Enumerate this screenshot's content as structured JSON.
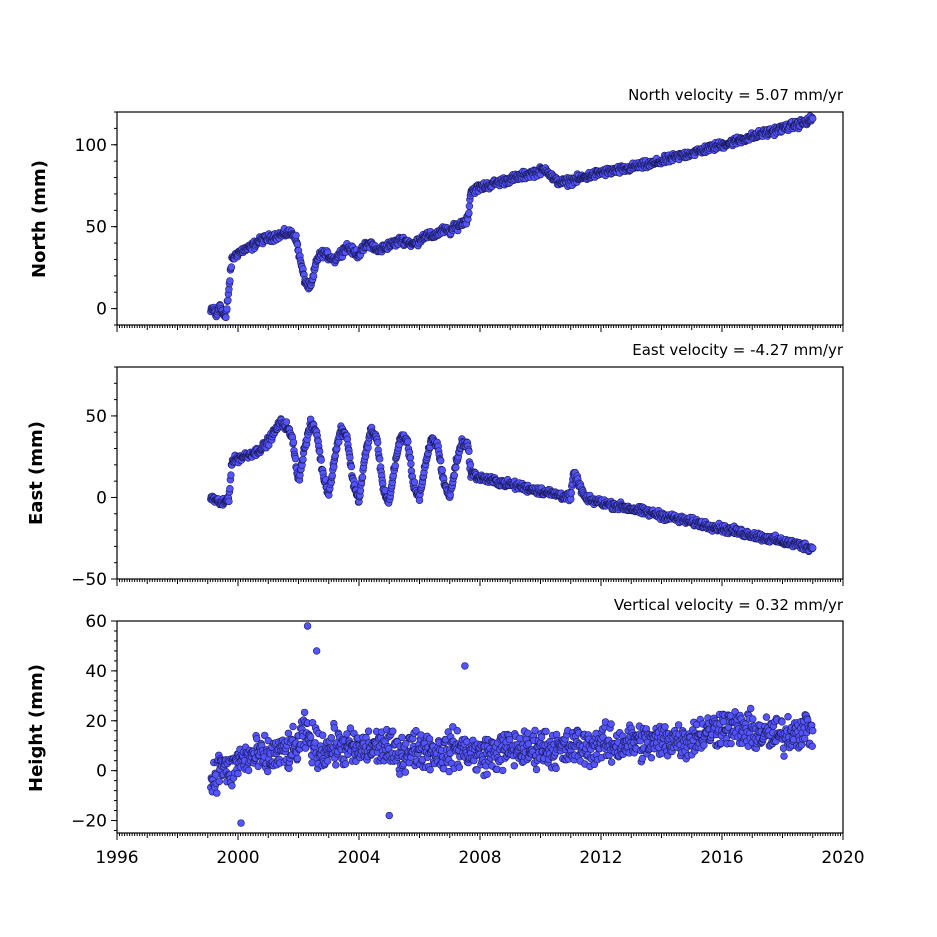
{
  "chart_data": [
    {
      "type": "scatter",
      "title": "North velocity = 5.07 mm/yr",
      "xlabel": "",
      "ylabel": "North (mm)",
      "xlim": [
        1996,
        2020
      ],
      "ylim": [
        -10,
        120
      ],
      "yticks": [
        0,
        50,
        100
      ],
      "grid": false,
      "series": [
        {
          "x": [
            1999.1,
            1999.2,
            1999.3,
            1999.4,
            1999.5,
            1999.6,
            1999.8,
            1999.9,
            2000.0,
            2000.2,
            2000.4,
            2000.6,
            2000.8,
            2001.0,
            2001.2,
            2001.4,
            2001.6,
            2001.8,
            2001.9,
            2002.0,
            2002.1,
            2002.2,
            2002.3,
            2002.4,
            2002.5,
            2002.6,
            2002.8,
            2003.0,
            2003.2,
            2003.4,
            2003.6,
            2003.8,
            2004.0,
            2004.2,
            2004.4,
            2004.6,
            2004.8,
            2005.0,
            2005.2,
            2005.4,
            2005.6,
            2005.8,
            2006.0,
            2006.2,
            2006.4,
            2006.6,
            2006.8,
            2007.0,
            2007.2,
            2007.4,
            2007.6,
            2007.7,
            2008.0,
            2008.4,
            2008.8,
            2009.2,
            2009.6,
            2010.0,
            2010.2,
            2010.4,
            2010.5,
            2010.8,
            2011.2,
            2011.6,
            2012.0,
            2012.4,
            2012.8,
            2013.2,
            2013.6,
            2014.0,
            2014.4,
            2014.8,
            2015.2,
            2015.6,
            2016.0,
            2016.4,
            2016.8,
            2017.2,
            2017.6,
            2018.0,
            2018.4,
            2018.8,
            2019.0
          ],
          "y": [
            -2,
            0,
            -5,
            3,
            -3,
            -6,
            30,
            32,
            34,
            36,
            37,
            40,
            42,
            43,
            44,
            45,
            46,
            46,
            44,
            35,
            26,
            18,
            14,
            13,
            20,
            30,
            34,
            32,
            30,
            34,
            38,
            35,
            33,
            38,
            40,
            35,
            37,
            39,
            40,
            42,
            41,
            39,
            42,
            45,
            44,
            46,
            48,
            47,
            50,
            52,
            55,
            72,
            74,
            76,
            78,
            80,
            82,
            84,
            85,
            80,
            78,
            77,
            79,
            81,
            83,
            84,
            85,
            87,
            88,
            90,
            92,
            94,
            96,
            98,
            100,
            102,
            104,
            106,
            108,
            110,
            112,
            114,
            116
          ]
        }
      ]
    },
    {
      "type": "scatter",
      "title": "East velocity = -4.27 mm/yr",
      "xlabel": "",
      "ylabel": "East (mm)",
      "xlim": [
        1996,
        2020
      ],
      "ylim": [
        -50,
        80
      ],
      "yticks": [
        -50,
        0,
        50
      ],
      "grid": false,
      "series": [
        {
          "x": [
            1999.1,
            1999.3,
            1999.5,
            1999.7,
            1999.8,
            2000.0,
            2000.3,
            2000.6,
            2000.9,
            2001.2,
            2001.4,
            2001.6,
            2001.8,
            2002.0,
            2002.2,
            2002.4,
            2002.6,
            2002.8,
            2003.0,
            2003.2,
            2003.4,
            2003.6,
            2003.8,
            2004.0,
            2004.2,
            2004.4,
            2004.6,
            2004.8,
            2005.0,
            2005.2,
            2005.4,
            2005.6,
            2005.8,
            2006.0,
            2006.2,
            2006.4,
            2006.6,
            2006.8,
            2007.0,
            2007.2,
            2007.4,
            2007.6,
            2007.7,
            2008.0,
            2008.5,
            2009.0,
            2009.5,
            2010.0,
            2010.5,
            2011.0,
            2011.1,
            2011.5,
            2012.0,
            2012.5,
            2013.0,
            2013.5,
            2014.0,
            2014.5,
            2015.0,
            2015.5,
            2016.0,
            2016.5,
            2017.0,
            2017.5,
            2018.0,
            2018.5,
            2019.0
          ],
          "y": [
            0,
            -2,
            -4,
            0,
            22,
            24,
            26,
            28,
            32,
            40,
            46,
            44,
            36,
            10,
            30,
            45,
            40,
            15,
            2,
            25,
            42,
            38,
            10,
            -2,
            25,
            42,
            35,
            5,
            -3,
            22,
            38,
            35,
            8,
            0,
            20,
            36,
            32,
            10,
            0,
            20,
            34,
            32,
            15,
            12,
            10,
            8,
            6,
            4,
            2,
            0,
            15,
            -1,
            -3,
            -5,
            -7,
            -9,
            -11,
            -13,
            -15,
            -17,
            -19,
            -21,
            -23,
            -25,
            -27,
            -29,
            -31
          ]
        }
      ]
    },
    {
      "type": "scatter",
      "title": "Vertical velocity = 0.32 mm/yr",
      "xlabel": "",
      "ylabel": "Height (mm)",
      "xlim": [
        1996,
        2020
      ],
      "ylim": [
        -25,
        60
      ],
      "yticks": [
        -20,
        0,
        20,
        40,
        60
      ],
      "xticks": [
        1996,
        2000,
        2004,
        2008,
        2012,
        2016,
        2020
      ],
      "xticklabels": [
        "1996",
        "2000",
        "2004",
        "2008",
        "2012",
        "2016",
        "2020"
      ],
      "grid": false,
      "series": [
        {
          "x": [
            1999.1,
            1999.3,
            1999.5,
            1999.7,
            2000.0,
            2000.3,
            2000.6,
            2001.0,
            2001.4,
            2001.8,
            2002.0,
            2002.2,
            2002.4,
            2002.6,
            2002.9,
            2003.2,
            2003.6,
            2004.0,
            2004.4,
            2004.8,
            2005.2,
            2005.6,
            2006.0,
            2006.4,
            2006.8,
            2007.2,
            2007.6,
            2008.0,
            2008.4,
            2008.8,
            2009.2,
            2009.6,
            2010.0,
            2010.4,
            2010.8,
            2011.2,
            2011.6,
            2012.0,
            2012.4,
            2012.8,
            2013.2,
            2013.6,
            2014.0,
            2014.4,
            2014.8,
            2015.2,
            2015.6,
            2016.0,
            2016.4,
            2016.8,
            2017.2,
            2017.6,
            2018.0,
            2018.4,
            2018.8,
            2019.0
          ],
          "y": [
            -5,
            0,
            3,
            -2,
            4,
            5,
            6,
            5,
            7,
            8,
            10,
            15,
            12,
            9,
            8,
            10,
            9,
            8,
            9,
            10,
            7,
            8,
            9,
            8,
            7,
            9,
            8,
            6,
            7,
            8,
            9,
            8,
            10,
            9,
            8,
            10,
            9,
            11,
            10,
            11,
            12,
            11,
            12,
            13,
            12,
            14,
            16,
            18,
            17,
            16,
            15,
            14,
            14,
            16,
            17,
            16
          ],
          "spread": 11,
          "outliers": [
            [
              2002.3,
              58
            ],
            [
              2002.6,
              48
            ],
            [
              2007.5,
              42
            ],
            [
              2000.1,
              -21
            ],
            [
              2005.0,
              -18
            ]
          ]
        }
      ]
    }
  ]
}
